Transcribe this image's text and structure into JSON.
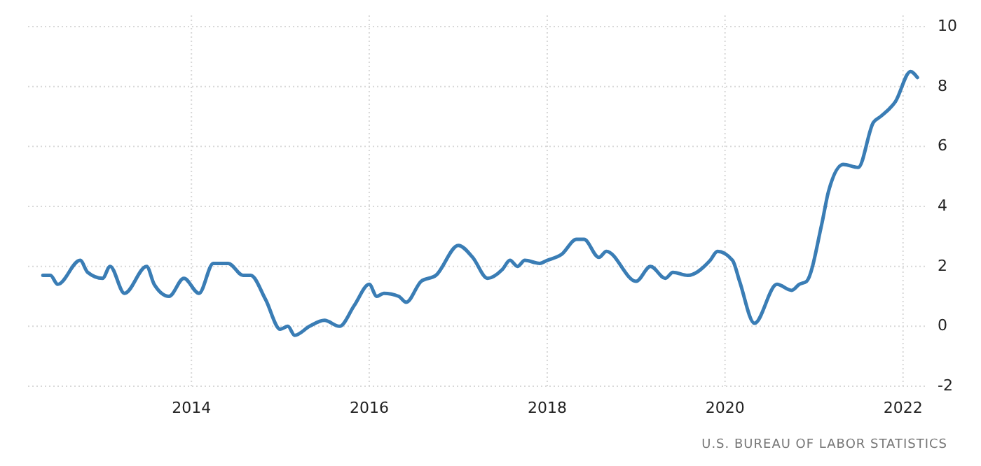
{
  "chart_data": {
    "type": "line",
    "x": [
      "2012-05",
      "2012-06",
      "2012-07",
      "2012-10",
      "2012-11",
      "2013-01",
      "2013-02",
      "2013-04",
      "2013-07",
      "2013-08",
      "2013-10",
      "2013-12",
      "2014-02",
      "2014-04",
      "2014-06",
      "2014-08",
      "2014-09",
      "2014-11",
      "2015-01",
      "2015-02",
      "2015-03",
      "2015-05",
      "2015-07",
      "2015-09",
      "2015-11",
      "2016-01",
      "2016-02",
      "2016-03",
      "2016-05",
      "2016-06",
      "2016-08",
      "2016-10",
      "2017-01",
      "2017-03",
      "2017-05",
      "2017-07",
      "2017-08",
      "2017-09",
      "2017-10",
      "2017-12",
      "2018-01",
      "2018-03",
      "2018-05",
      "2018-06",
      "2018-08",
      "2018-09",
      "2019-01",
      "2019-03",
      "2019-05",
      "2019-06",
      "2019-08",
      "2019-11",
      "2019-12",
      "2020-02",
      "2020-03",
      "2020-05",
      "2020-08",
      "2020-10",
      "2020-11",
      "2020-12",
      "2021-02",
      "2021-03",
      "2021-05",
      "2021-07",
      "2021-09",
      "2021-10",
      "2021-12",
      "2022-02",
      "2022-03"
    ],
    "series": [
      {
        "color": "#3a7db5",
        "values": [
          1.7,
          1.7,
          1.4,
          2.2,
          1.8,
          1.6,
          2.0,
          1.1,
          2.0,
          1.4,
          1.0,
          1.6,
          1.1,
          2.1,
          2.1,
          1.7,
          1.7,
          0.9,
          -0.1,
          0.0,
          -0.3,
          0.0,
          0.2,
          0.0,
          0.7,
          1.4,
          1.0,
          1.1,
          1.0,
          0.8,
          1.5,
          1.7,
          2.7,
          2.3,
          1.6,
          1.9,
          2.2,
          2.0,
          2.2,
          2.1,
          2.2,
          2.4,
          2.9,
          2.9,
          2.3,
          2.5,
          1.5,
          2.0,
          1.6,
          1.8,
          1.7,
          2.2,
          2.5,
          2.2,
          1.5,
          0.1,
          1.4,
          1.2,
          1.4,
          1.5,
          3.4,
          4.5,
          5.4,
          5.3,
          6.8,
          7.0,
          7.5,
          8.5,
          8.3
        ]
      }
    ],
    "xlim": [
      "2012-03",
      "2022-04"
    ],
    "xticks": [
      "2014",
      "2016",
      "2018",
      "2020",
      "2022"
    ],
    "ylim": [
      -2,
      10
    ],
    "yticks": [
      -2,
      0,
      2,
      4,
      6,
      8,
      10
    ],
    "grid": true,
    "line_style": "solid",
    "marker": "none",
    "annotations": [
      "U.S. BUREAU OF LABOR STATISTICS"
    ]
  }
}
